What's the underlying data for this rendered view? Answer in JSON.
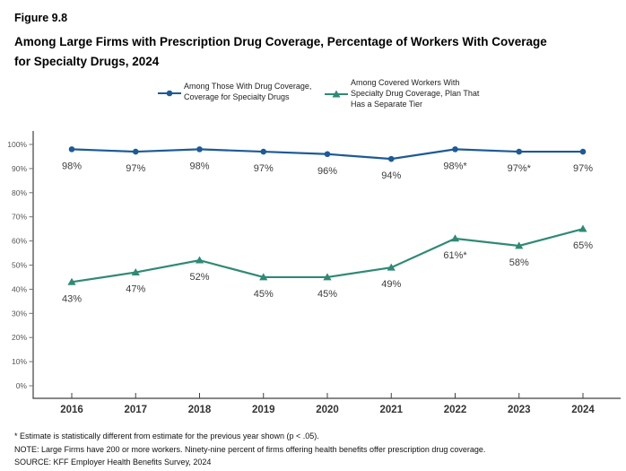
{
  "figure_label": "Figure 9.8",
  "title_lines": [
    "Among Large Firms with Prescription Drug Coverage, Percentage of Workers With Coverage",
    "for Specialty Drugs, 2024"
  ],
  "legend": [
    {
      "name": "Among Those With Drug Coverage, Coverage for Specialty Drugs",
      "lines": [
        "Among Those With Drug Coverage,",
        "Coverage for Specialty Drugs"
      ],
      "color": "#1d5a97",
      "marker": "circle"
    },
    {
      "name": "Among Covered Workers With Specialty Drug Coverage, Plan That Has a Separate Tier",
      "lines": [
        "Among Covered Workers With",
        "Specialty Drug Coverage, Plan That",
        "Has a Separate Tier"
      ],
      "color": "#2e8a74",
      "marker": "triangle"
    }
  ],
  "chart_data": {
    "type": "line",
    "x": [
      "2016",
      "2017",
      "2018",
      "2019",
      "2020",
      "2021",
      "2022",
      "2023",
      "2024"
    ],
    "series": [
      {
        "name": "Among Those With Drug Coverage, Coverage for Specialty Drugs",
        "color": "#1d5a97",
        "marker": "circle",
        "values": [
          98,
          97,
          98,
          97,
          96,
          94,
          98,
          97,
          97
        ],
        "labels": [
          "98%",
          "97%",
          "98%",
          "97%",
          "96%",
          "94%",
          "98%*",
          "97%*",
          "97%"
        ]
      },
      {
        "name": "Among Covered Workers With Specialty Drug Coverage, Plan That Has a Separate Tier",
        "color": "#2e8a74",
        "marker": "triangle",
        "values": [
          43,
          47,
          52,
          45,
          45,
          49,
          61,
          58,
          65
        ],
        "labels": [
          "43%",
          "47%",
          "52%",
          "45%",
          "45%",
          "49%",
          "61%*",
          "58%",
          "65%"
        ]
      }
    ],
    "ylim": [
      0,
      100
    ],
    "ytick_labels": [
      "0%",
      "10%",
      "20%",
      "30%",
      "40%",
      "50%",
      "60%",
      "70%",
      "80%",
      "90%",
      "100%"
    ],
    "grid": false,
    "legend_position": "top"
  },
  "footnotes": [
    "* Estimate is statistically different from estimate for the previous year shown (p < .05).",
    "NOTE: Large Firms have 200 or more workers. Ninety-nine percent of firms offering health benefits offer prescription drug coverage.",
    "SOURCE: KFF Employer Health Benefits Survey, 2024"
  ]
}
